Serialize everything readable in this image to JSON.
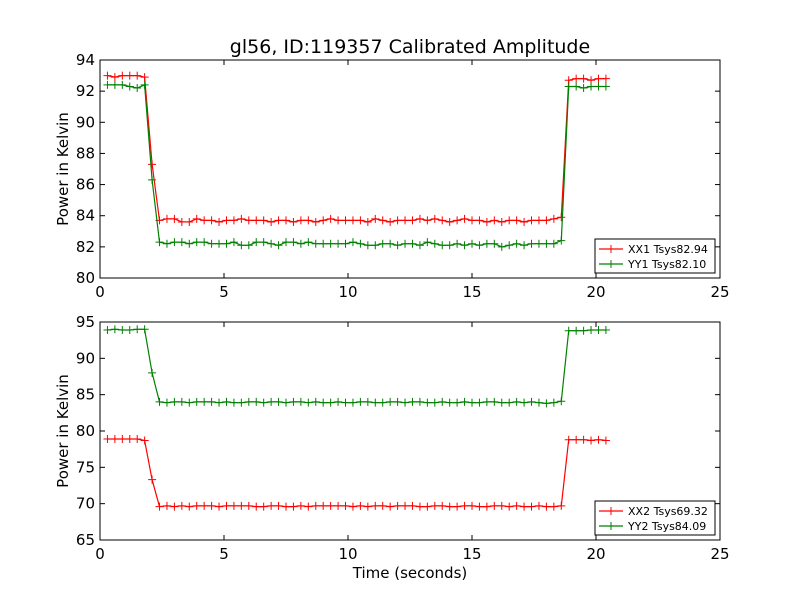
{
  "figure": {
    "title": "gl56, ID:119357 Calibrated Amplitude",
    "xlabel": "Time (seconds)"
  },
  "chart_data": [
    {
      "type": "line",
      "title": "gl56, ID:119357 Calibrated Amplitude",
      "xlabel": "",
      "ylabel": "Power in Kelvin",
      "xlim": [
        0,
        25
      ],
      "ylim": [
        80,
        94
      ],
      "xticks": [
        0,
        5,
        10,
        15,
        20,
        25
      ],
      "yticks": [
        80,
        82,
        84,
        86,
        88,
        90,
        92,
        94
      ],
      "grid": false,
      "legend_position": "lower-right",
      "series": [
        {
          "name": "XX1 Tsys82.94",
          "color": "#ff0000",
          "x": [
            0.3,
            0.6,
            0.9,
            1.2,
            1.5,
            1.8,
            2.1,
            2.4,
            2.7,
            3.0,
            3.3,
            3.6,
            3.9,
            4.2,
            4.5,
            4.8,
            5.1,
            5.4,
            5.7,
            6.0,
            6.3,
            6.6,
            6.9,
            7.2,
            7.5,
            7.8,
            8.1,
            8.4,
            8.7,
            9.0,
            9.3,
            9.6,
            9.9,
            10.2,
            10.5,
            10.8,
            11.1,
            11.4,
            11.7,
            12.0,
            12.3,
            12.6,
            12.9,
            13.2,
            13.5,
            13.8,
            14.1,
            14.4,
            14.7,
            15.0,
            15.3,
            15.6,
            15.9,
            16.2,
            16.5,
            16.8,
            17.1,
            17.4,
            17.7,
            18.0,
            18.3,
            18.6,
            18.9,
            19.2,
            19.5,
            19.8,
            20.1,
            20.4
          ],
          "values": [
            93.0,
            92.9,
            93.0,
            93.0,
            93.0,
            92.9,
            87.3,
            83.7,
            83.8,
            83.8,
            83.6,
            83.6,
            83.8,
            83.7,
            83.7,
            83.6,
            83.7,
            83.7,
            83.8,
            83.7,
            83.7,
            83.7,
            83.6,
            83.7,
            83.7,
            83.6,
            83.7,
            83.7,
            83.6,
            83.7,
            83.8,
            83.7,
            83.7,
            83.7,
            83.7,
            83.6,
            83.8,
            83.7,
            83.6,
            83.7,
            83.7,
            83.7,
            83.8,
            83.7,
            83.8,
            83.7,
            83.6,
            83.7,
            83.8,
            83.7,
            83.7,
            83.6,
            83.7,
            83.6,
            83.7,
            83.7,
            83.6,
            83.7,
            83.7,
            83.7,
            83.8,
            83.9,
            92.7,
            92.8,
            92.8,
            92.7,
            92.8,
            92.8
          ]
        },
        {
          "name": "YY1 Tsys82.10",
          "color": "#008000",
          "x": [
            0.3,
            0.6,
            0.9,
            1.2,
            1.5,
            1.8,
            2.1,
            2.4,
            2.7,
            3.0,
            3.3,
            3.6,
            3.9,
            4.2,
            4.5,
            4.8,
            5.1,
            5.4,
            5.7,
            6.0,
            6.3,
            6.6,
            6.9,
            7.2,
            7.5,
            7.8,
            8.1,
            8.4,
            8.7,
            9.0,
            9.3,
            9.6,
            9.9,
            10.2,
            10.5,
            10.8,
            11.1,
            11.4,
            11.7,
            12.0,
            12.3,
            12.6,
            12.9,
            13.2,
            13.5,
            13.8,
            14.1,
            14.4,
            14.7,
            15.0,
            15.3,
            15.6,
            15.9,
            16.2,
            16.5,
            16.8,
            17.1,
            17.4,
            17.7,
            18.0,
            18.3,
            18.6,
            18.9,
            19.2,
            19.5,
            19.8,
            20.1,
            20.4
          ],
          "values": [
            92.4,
            92.4,
            92.4,
            92.3,
            92.2,
            92.4,
            86.3,
            82.3,
            82.2,
            82.3,
            82.3,
            82.2,
            82.3,
            82.3,
            82.2,
            82.2,
            82.2,
            82.3,
            82.1,
            82.1,
            82.3,
            82.3,
            82.2,
            82.1,
            82.3,
            82.3,
            82.2,
            82.3,
            82.2,
            82.2,
            82.2,
            82.2,
            82.2,
            82.3,
            82.2,
            82.1,
            82.1,
            82.2,
            82.2,
            82.1,
            82.2,
            82.2,
            82.1,
            82.3,
            82.2,
            82.1,
            82.1,
            82.2,
            82.1,
            82.2,
            82.1,
            82.2,
            82.2,
            82.0,
            82.1,
            82.2,
            82.1,
            82.2,
            82.2,
            82.2,
            82.2,
            82.4,
            92.3,
            92.3,
            92.2,
            92.3,
            92.3,
            92.3
          ]
        }
      ]
    },
    {
      "type": "line",
      "title": "",
      "xlabel": "Time (seconds)",
      "ylabel": "Power in Kelvin",
      "xlim": [
        0,
        25
      ],
      "ylim": [
        65,
        95
      ],
      "xticks": [
        0,
        5,
        10,
        15,
        20,
        25
      ],
      "yticks": [
        65,
        70,
        75,
        80,
        85,
        90,
        95
      ],
      "grid": false,
      "legend_position": "lower-right",
      "series": [
        {
          "name": "XX2 Tsys69.32",
          "color": "#ff0000",
          "x": [
            0.3,
            0.6,
            0.9,
            1.2,
            1.5,
            1.8,
            2.1,
            2.4,
            2.7,
            3.0,
            3.3,
            3.6,
            3.9,
            4.2,
            4.5,
            4.8,
            5.1,
            5.4,
            5.7,
            6.0,
            6.3,
            6.6,
            6.9,
            7.2,
            7.5,
            7.8,
            8.1,
            8.4,
            8.7,
            9.0,
            9.3,
            9.6,
            9.9,
            10.2,
            10.5,
            10.8,
            11.1,
            11.4,
            11.7,
            12.0,
            12.3,
            12.6,
            12.9,
            13.2,
            13.5,
            13.8,
            14.1,
            14.4,
            14.7,
            15.0,
            15.3,
            15.6,
            15.9,
            16.2,
            16.5,
            16.8,
            17.1,
            17.4,
            17.7,
            18.0,
            18.3,
            18.6,
            18.9,
            19.2,
            19.5,
            19.8,
            20.1,
            20.4
          ],
          "values": [
            78.9,
            78.9,
            78.9,
            78.9,
            78.9,
            78.7,
            73.3,
            69.6,
            69.7,
            69.6,
            69.7,
            69.6,
            69.7,
            69.7,
            69.7,
            69.6,
            69.7,
            69.7,
            69.7,
            69.7,
            69.6,
            69.6,
            69.7,
            69.7,
            69.6,
            69.6,
            69.7,
            69.6,
            69.7,
            69.7,
            69.7,
            69.7,
            69.7,
            69.6,
            69.7,
            69.6,
            69.7,
            69.7,
            69.6,
            69.7,
            69.7,
            69.7,
            69.6,
            69.6,
            69.7,
            69.7,
            69.6,
            69.6,
            69.7,
            69.7,
            69.6,
            69.6,
            69.7,
            69.7,
            69.6,
            69.7,
            69.6,
            69.6,
            69.7,
            69.6,
            69.6,
            69.7,
            78.8,
            78.8,
            78.8,
            78.7,
            78.8,
            78.7
          ]
        },
        {
          "name": "YY2 Tsys84.09",
          "color": "#008000",
          "x": [
            0.3,
            0.6,
            0.9,
            1.2,
            1.5,
            1.8,
            2.1,
            2.4,
            2.7,
            3.0,
            3.3,
            3.6,
            3.9,
            4.2,
            4.5,
            4.8,
            5.1,
            5.4,
            5.7,
            6.0,
            6.3,
            6.6,
            6.9,
            7.2,
            7.5,
            7.8,
            8.1,
            8.4,
            8.7,
            9.0,
            9.3,
            9.6,
            9.9,
            10.2,
            10.5,
            10.8,
            11.1,
            11.4,
            11.7,
            12.0,
            12.3,
            12.6,
            12.9,
            13.2,
            13.5,
            13.8,
            14.1,
            14.4,
            14.7,
            15.0,
            15.3,
            15.6,
            15.9,
            16.2,
            16.5,
            16.8,
            17.1,
            17.4,
            17.7,
            18.0,
            18.3,
            18.6,
            18.9,
            19.2,
            19.5,
            19.8,
            20.1,
            20.4
          ],
          "values": [
            93.9,
            94.0,
            93.9,
            93.9,
            94.0,
            94.0,
            88.0,
            84.0,
            83.9,
            84.0,
            84.0,
            83.9,
            84.0,
            84.0,
            84.0,
            83.9,
            84.0,
            83.9,
            83.9,
            84.0,
            84.0,
            83.9,
            84.0,
            84.0,
            83.9,
            84.0,
            84.0,
            83.9,
            84.0,
            83.9,
            83.9,
            84.0,
            83.9,
            83.9,
            84.0,
            84.0,
            83.9,
            83.9,
            84.0,
            84.0,
            83.9,
            84.0,
            84.0,
            83.9,
            83.9,
            84.0,
            83.9,
            83.9,
            84.0,
            83.9,
            83.9,
            84.0,
            84.0,
            83.9,
            83.9,
            84.0,
            83.9,
            84.0,
            83.9,
            83.8,
            83.9,
            84.1,
            93.8,
            93.8,
            93.8,
            93.9,
            93.9,
            93.9
          ]
        }
      ]
    }
  ]
}
